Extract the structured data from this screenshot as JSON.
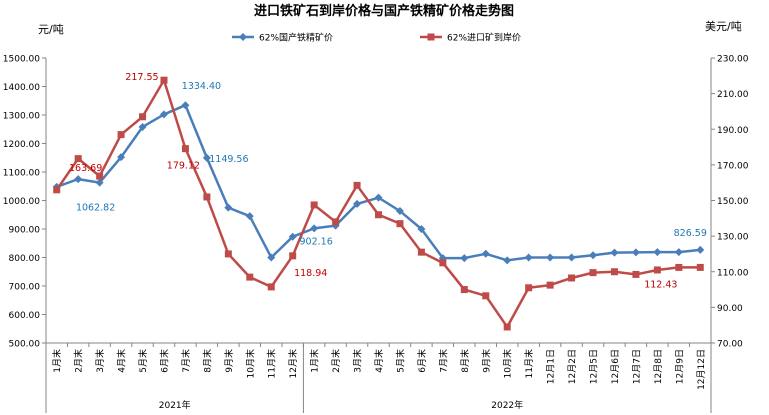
{
  "chart_data": {
    "type": "line",
    "title": "进口铁矿石到岸价格与国产铁精矿价格走势图",
    "y_left_label": "元/吨",
    "y_right_label": "美元/吨",
    "y_left_range": [
      500,
      1500
    ],
    "y_right_range": [
      70,
      230
    ],
    "y_left_ticks": [
      "500.00",
      "600.00",
      "700.00",
      "800.00",
      "900.00",
      "1000.00",
      "1100.00",
      "1200.00",
      "1300.00",
      "1400.00",
      "1500.00"
    ],
    "y_right_ticks": [
      "70.00",
      "90.00",
      "110.00",
      "130.00",
      "150.00",
      "170.00",
      "190.00",
      "210.00",
      "230.00"
    ],
    "categories": [
      "1月末",
      "2月末",
      "3月末",
      "4月末",
      "5月末",
      "6月末",
      "7月末",
      "8月末",
      "9月末",
      "10月末",
      "11月末",
      "12月末",
      "1月末",
      "2月末",
      "3月末",
      "4月末",
      "5月末",
      "6月末",
      "7月末",
      "8月末",
      "9月末",
      "10月末",
      "11月末",
      "12月1日",
      "12月2日",
      "12月5日",
      "12月6日",
      "12月7日",
      "12月8日",
      "12月9日",
      "12月12日"
    ],
    "groups": [
      {
        "label": "2021年",
        "start": 0,
        "end": 11
      },
      {
        "label": "2022年",
        "start": 12,
        "end": 30
      }
    ],
    "series": [
      {
        "name": "62%国产铁精矿价",
        "axis": "left",
        "color": "#4a7ebb",
        "values": [
          1048,
          1075,
          1062.82,
          1152,
          1258,
          1302,
          1334.4,
          1149.56,
          975,
          945,
          800,
          873,
          902.16,
          912,
          988,
          1010,
          963,
          900,
          798,
          798,
          813,
          790,
          800,
          800,
          800,
          808,
          817,
          818,
          819,
          819,
          826.59
        ]
      },
      {
        "name": "62%进口矿到岸价",
        "axis": "right",
        "color": "#be4b48",
        "values": [
          156,
          173.5,
          163.69,
          187,
          197,
          217.55,
          179.12,
          152,
          120,
          107,
          101.5,
          118.94,
          147.5,
          138,
          158.5,
          142,
          137,
          121,
          115,
          100,
          96.5,
          79,
          101,
          102.5,
          106.5,
          109.5,
          110,
          108.5,
          111,
          112.43,
          112.43
        ]
      }
    ],
    "data_labels": [
      {
        "series": 0,
        "index": 2,
        "text": "1062.82"
      },
      {
        "series": 0,
        "index": 6,
        "text": "1334.40"
      },
      {
        "series": 0,
        "index": 7,
        "text": "1149.56"
      },
      {
        "series": 0,
        "index": 12,
        "text": "902.16"
      },
      {
        "series": 0,
        "index": 30,
        "text": "826.59"
      },
      {
        "series": 1,
        "index": 2,
        "text": "163.69"
      },
      {
        "series": 1,
        "index": 5,
        "text": "217.55"
      },
      {
        "series": 1,
        "index": 6,
        "text": "179.12"
      },
      {
        "series": 1,
        "index": 11,
        "text": "118.94"
      },
      {
        "series": 1,
        "index": 29,
        "text": "112.43"
      }
    ],
    "legend_position": "top-center",
    "grid": false
  }
}
